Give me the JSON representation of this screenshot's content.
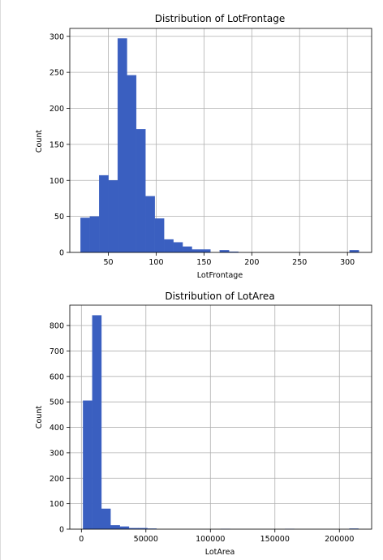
{
  "chart_data": [
    {
      "type": "bar",
      "title": "Distribution of LotFrontage",
      "xlabel": "LotFrontage",
      "ylabel": "Count",
      "xlim": [
        9.7,
        325.3
      ],
      "ylim": [
        0,
        311
      ],
      "x_ticks": [
        50,
        100,
        150,
        200,
        250,
        300
      ],
      "y_ticks": [
        0,
        50,
        100,
        150,
        200,
        250,
        300
      ],
      "grid": true,
      "bin_start": 21,
      "bin_width": 9.7,
      "values": [
        48,
        50,
        107,
        100,
        297,
        246,
        171,
        78,
        47,
        18,
        14,
        8,
        4,
        4,
        0,
        3,
        1,
        0,
        0,
        0,
        0,
        0,
        0,
        0,
        0,
        0,
        0,
        0,
        0,
        3
      ],
      "bar_color": "#3a5fc0"
    },
    {
      "type": "bar",
      "title": "Distribution of LotArea",
      "xlabel": "LotArea",
      "ylabel": "Count",
      "xlim": [
        -9000,
        225000
      ],
      "ylim": [
        0,
        880
      ],
      "x_ticks": [
        0,
        50000,
        100000,
        150000,
        200000
      ],
      "y_ticks": [
        0,
        100,
        200,
        300,
        400,
        500,
        600,
        700,
        800
      ],
      "grid": true,
      "bin_start": 1300,
      "bin_width": 7118,
      "values": [
        505,
        840,
        80,
        15,
        10,
        4,
        4,
        2,
        0,
        0,
        0,
        0,
        0,
        0,
        0,
        1,
        0,
        0,
        0,
        0,
        0,
        0,
        1,
        0,
        0,
        0,
        0,
        0,
        0,
        2
      ],
      "bar_color": "#3a5fc0"
    }
  ]
}
